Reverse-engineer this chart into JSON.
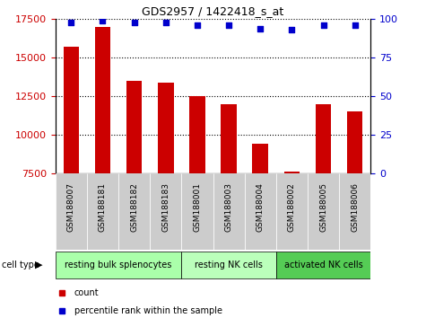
{
  "title": "GDS2957 / 1422418_s_at",
  "samples": [
    "GSM188007",
    "GSM188181",
    "GSM188182",
    "GSM188183",
    "GSM188001",
    "GSM188003",
    "GSM188004",
    "GSM188002",
    "GSM188005",
    "GSM188006"
  ],
  "counts": [
    15700,
    17000,
    13500,
    13400,
    12500,
    12000,
    9400,
    7600,
    12000,
    11500
  ],
  "percentiles": [
    98,
    99,
    98,
    98,
    96,
    96,
    94,
    93,
    96,
    96
  ],
  "bar_color": "#cc0000",
  "dot_color": "#0000cc",
  "ylim_left": [
    7500,
    17500
  ],
  "ylim_right": [
    0,
    100
  ],
  "yticks_left": [
    7500,
    10000,
    12500,
    15000,
    17500
  ],
  "yticks_right": [
    0,
    25,
    50,
    75,
    100
  ],
  "cell_groups": [
    {
      "label": "resting bulk splenocytes",
      "start": 0,
      "end": 4,
      "color": "#aaffaa"
    },
    {
      "label": "resting NK cells",
      "start": 4,
      "end": 7,
      "color": "#bbffbb"
    },
    {
      "label": "activated NK cells",
      "start": 7,
      "end": 10,
      "color": "#55cc55"
    }
  ],
  "cell_type_label": "cell type",
  "legend_count_label": "count",
  "legend_percentile_label": "percentile rank within the sample",
  "sample_bg_color": "#cccccc",
  "grid_linestyle": ":",
  "grid_linewidth": 0.8,
  "bar_width": 0.5
}
